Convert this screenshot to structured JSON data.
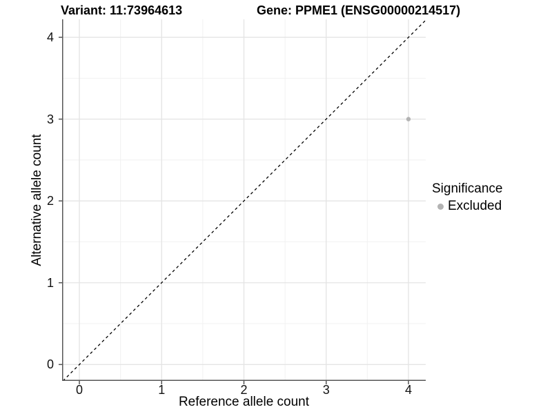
{
  "chart_data": {
    "type": "scatter",
    "title_left": "Variant: 11:73964613",
    "title_right": "Gene: PPME1 (ENSG00000214517)",
    "xlabel": "Reference allele count",
    "ylabel": "Alternative allele count",
    "xlim": [
      -0.21,
      4.21
    ],
    "ylim": [
      -0.2,
      4.22
    ],
    "x_ticks": [
      0,
      1,
      2,
      3,
      4
    ],
    "y_ticks": [
      0,
      1,
      2,
      3,
      4
    ],
    "x_minor_ticks": [
      0.5,
      1.5,
      2.5,
      3.5
    ],
    "y_minor_ticks": [
      0.5,
      1.5,
      2.5,
      3.5
    ],
    "grid": true,
    "reference_line": {
      "kind": "identity",
      "slope": 1,
      "intercept": 0,
      "style": "dashed",
      "color": "#000000"
    },
    "series": [
      {
        "name": "Excluded",
        "color": "#b3b3b3",
        "points": [
          [
            4,
            3
          ]
        ]
      }
    ],
    "legend": {
      "title": "Significance",
      "position": "right",
      "items": [
        {
          "label": "Excluded",
          "color": "#b3b3b3"
        }
      ]
    },
    "style": {
      "grid_major": "#e4e4e4",
      "grid_minor": "#f1f1f1",
      "axis_line": "#555555",
      "tick_color": "#555555",
      "point_radius": 3.2
    }
  }
}
